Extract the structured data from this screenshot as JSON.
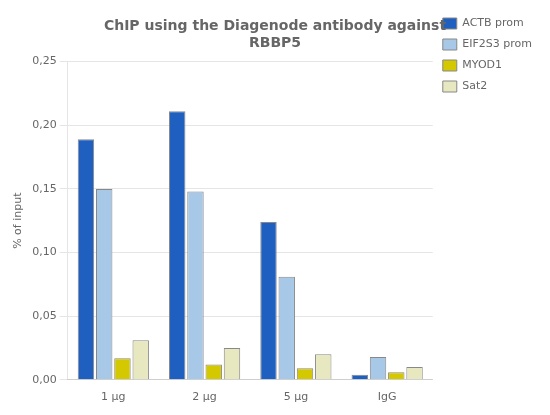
{
  "chart_data": {
    "type": "bar",
    "title": "ChIP using the Diagenode antibody against\nRBBP5",
    "y_label": "% of input",
    "categories": [
      "1 μg",
      "2 μg",
      "5 μg",
      "IgG"
    ],
    "series": [
      {
        "name": "ACTB prom",
        "color": "#1F5FBF",
        "values": [
          0.189,
          0.211,
          0.124,
          0.004
        ]
      },
      {
        "name": "EIF2S3 prom",
        "color": "#A8C8E8",
        "values": [
          0.15,
          0.148,
          0.081,
          0.018
        ]
      },
      {
        "name": "MYOD1",
        "color": "#D4C800",
        "values": [
          0.017,
          0.012,
          0.009,
          0.006
        ]
      },
      {
        "name": "Sat2",
        "color": "#E8E8C0",
        "values": [
          0.031,
          0.025,
          0.02,
          0.01
        ]
      }
    ],
    "ylim": [
      0,
      0.25
    ],
    "yticks": [
      {
        "value": 0.0,
        "label": "0,00"
      },
      {
        "value": 0.05,
        "label": "0,05"
      },
      {
        "value": 0.1,
        "label": "0,10"
      },
      {
        "value": 0.15,
        "label": "0,15"
      },
      {
        "value": 0.2,
        "label": "0,20"
      },
      {
        "value": 0.25,
        "label": "0,25"
      }
    ],
    "grid": true,
    "legend": "upper right"
  }
}
